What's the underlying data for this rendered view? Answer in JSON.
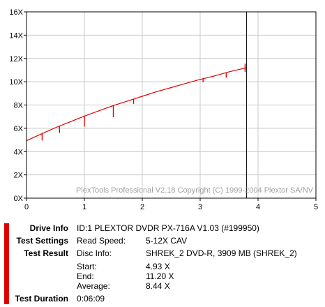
{
  "colors": {
    "curve": "#e00000",
    "marker": "#000000",
    "grid": "#c8c8c8",
    "frame": "#000000",
    "report_bar": "#e00000"
  },
  "chart_data": {
    "type": "line",
    "title": "",
    "xlabel": "",
    "ylabel": "",
    "xlim": [
      0,
      5
    ],
    "ylim": [
      0,
      16
    ],
    "grid": true,
    "x_ticks": [
      "0",
      "1",
      "2",
      "3",
      "4",
      "5"
    ],
    "y_ticks": [
      "0X",
      "2X",
      "4X",
      "6X",
      "8X",
      "10X",
      "12X",
      "14X",
      "16X"
    ],
    "series": [
      {
        "x": [
          0,
          0.25,
          0.5,
          0.75,
          1.0,
          1.25,
          1.5,
          1.75,
          2.0,
          2.25,
          2.5,
          2.75,
          3.0,
          3.25,
          3.5,
          3.8
        ],
        "values": [
          4.93,
          5.5,
          6.05,
          6.55,
          7.05,
          7.5,
          7.95,
          8.35,
          8.75,
          9.15,
          9.5,
          9.85,
          10.2,
          10.5,
          10.85,
          11.2
        ]
      }
    ],
    "dips": [
      {
        "x": 0.27,
        "y": 5.55,
        "depth": 0.6
      },
      {
        "x": 0.57,
        "y": 6.2,
        "depth": 0.6
      },
      {
        "x": 1.0,
        "y": 7.05,
        "depth": 0.9
      },
      {
        "x": 1.5,
        "y": 7.95,
        "depth": 1.0
      },
      {
        "x": 1.85,
        "y": 8.5,
        "depth": 0.4
      },
      {
        "x": 3.05,
        "y": 10.25,
        "depth": 0.3
      },
      {
        "x": 3.45,
        "y": 10.75,
        "depth": 0.4
      }
    ],
    "end_marker_x": 3.8,
    "annotation": "PlexTools Professional V2.18 Copyright (C) 1999-2004 Plextor SA/NV"
  },
  "report": {
    "drive_info_label": "Drive Info",
    "drive_info_value": "ID:1 PLEXTOR DVDR PX-716A V1.03 (#199950)",
    "test_settings_label": "Test Settings",
    "read_speed_label": "Read Speed:",
    "read_speed_value": "5-12X CAV",
    "test_result_label": "Test Result",
    "disc_info_label": "Disc Info:",
    "disc_info_value": "SHREK_2 DVD-R, 3909 MB (SHREK_2)",
    "start_label": "Start:",
    "start_value": "4.93 X",
    "end_label": "End:",
    "end_value": "11.20 X",
    "average_label": "Average:",
    "average_value": "8.44 X",
    "test_duration_label": "Test Duration",
    "test_duration_value": "0:06:09"
  }
}
